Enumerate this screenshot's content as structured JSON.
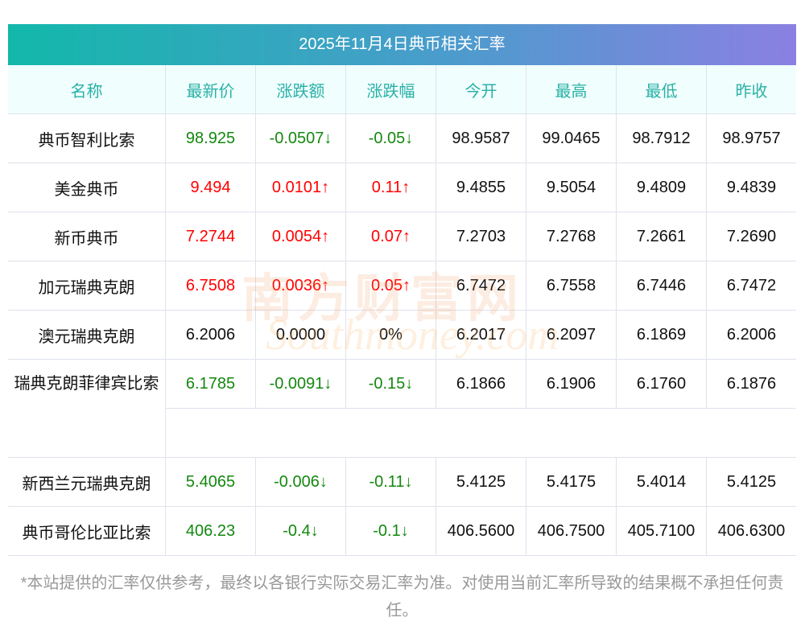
{
  "title": "2025年11月4日典币相关汇率",
  "headers": [
    "名称",
    "最新价",
    "涨跌额",
    "涨跌幅",
    "今开",
    "最高",
    "最低",
    "昨收"
  ],
  "rows": [
    {
      "name": "典币智利比索",
      "cells": [
        "98.925",
        "-0.0507↓",
        "-0.05↓",
        "98.9587",
        "99.0465",
        "98.7912",
        "98.9757"
      ],
      "dir": "down"
    },
    {
      "name": "美金典币",
      "cells": [
        "9.494",
        "0.0101↑",
        "0.11↑",
        "9.4855",
        "9.5054",
        "9.4809",
        "9.4839"
      ],
      "dir": "up"
    },
    {
      "name": "新币典币",
      "cells": [
        "7.2744",
        "0.0054↑",
        "0.07↑",
        "7.2703",
        "7.2768",
        "7.2661",
        "7.2690"
      ],
      "dir": "up"
    },
    {
      "name": "加元瑞典克朗",
      "cells": [
        "6.7508",
        "0.0036↑",
        "0.05↑",
        "6.7472",
        "6.7558",
        "6.7446",
        "6.7472"
      ],
      "dir": "up"
    },
    {
      "name": "澳元瑞典克朗",
      "cells": [
        "6.2006",
        "0.0000",
        "0%",
        "6.2017",
        "6.2097",
        "6.1869",
        "6.2006"
      ],
      "dir": "flat"
    },
    {
      "name": "瑞典克朗菲律宾比索",
      "cells": [
        "6.1785",
        "-0.0091↓",
        "-0.15↓",
        "6.1866",
        "6.1906",
        "6.1760",
        "6.1876"
      ],
      "dir": "down"
    },
    {
      "name": "新西兰元瑞典克朗",
      "cells": [
        "5.4065",
        "-0.006↓",
        "-0.11↓",
        "5.4125",
        "5.4175",
        "5.4014",
        "5.4125"
      ],
      "dir": "down"
    },
    {
      "name": "典币哥伦比亚比索",
      "cells": [
        "406.23",
        "-0.4↓",
        "-0.1↓",
        "406.5600",
        "406.7500",
        "405.7100",
        "406.6300"
      ],
      "dir": "down"
    }
  ],
  "watermark": {
    "cn": "南方财富网",
    "en": "Southmoney.com"
  },
  "note": "*本站提供的汇率仅供参考，最终以各银行实际交易汇率为准。对使用当前汇率所导致的结果概不承担任何责任。",
  "colors": {
    "up": "#ff0000",
    "down": "#14880f",
    "header": "#2ab1a6"
  }
}
